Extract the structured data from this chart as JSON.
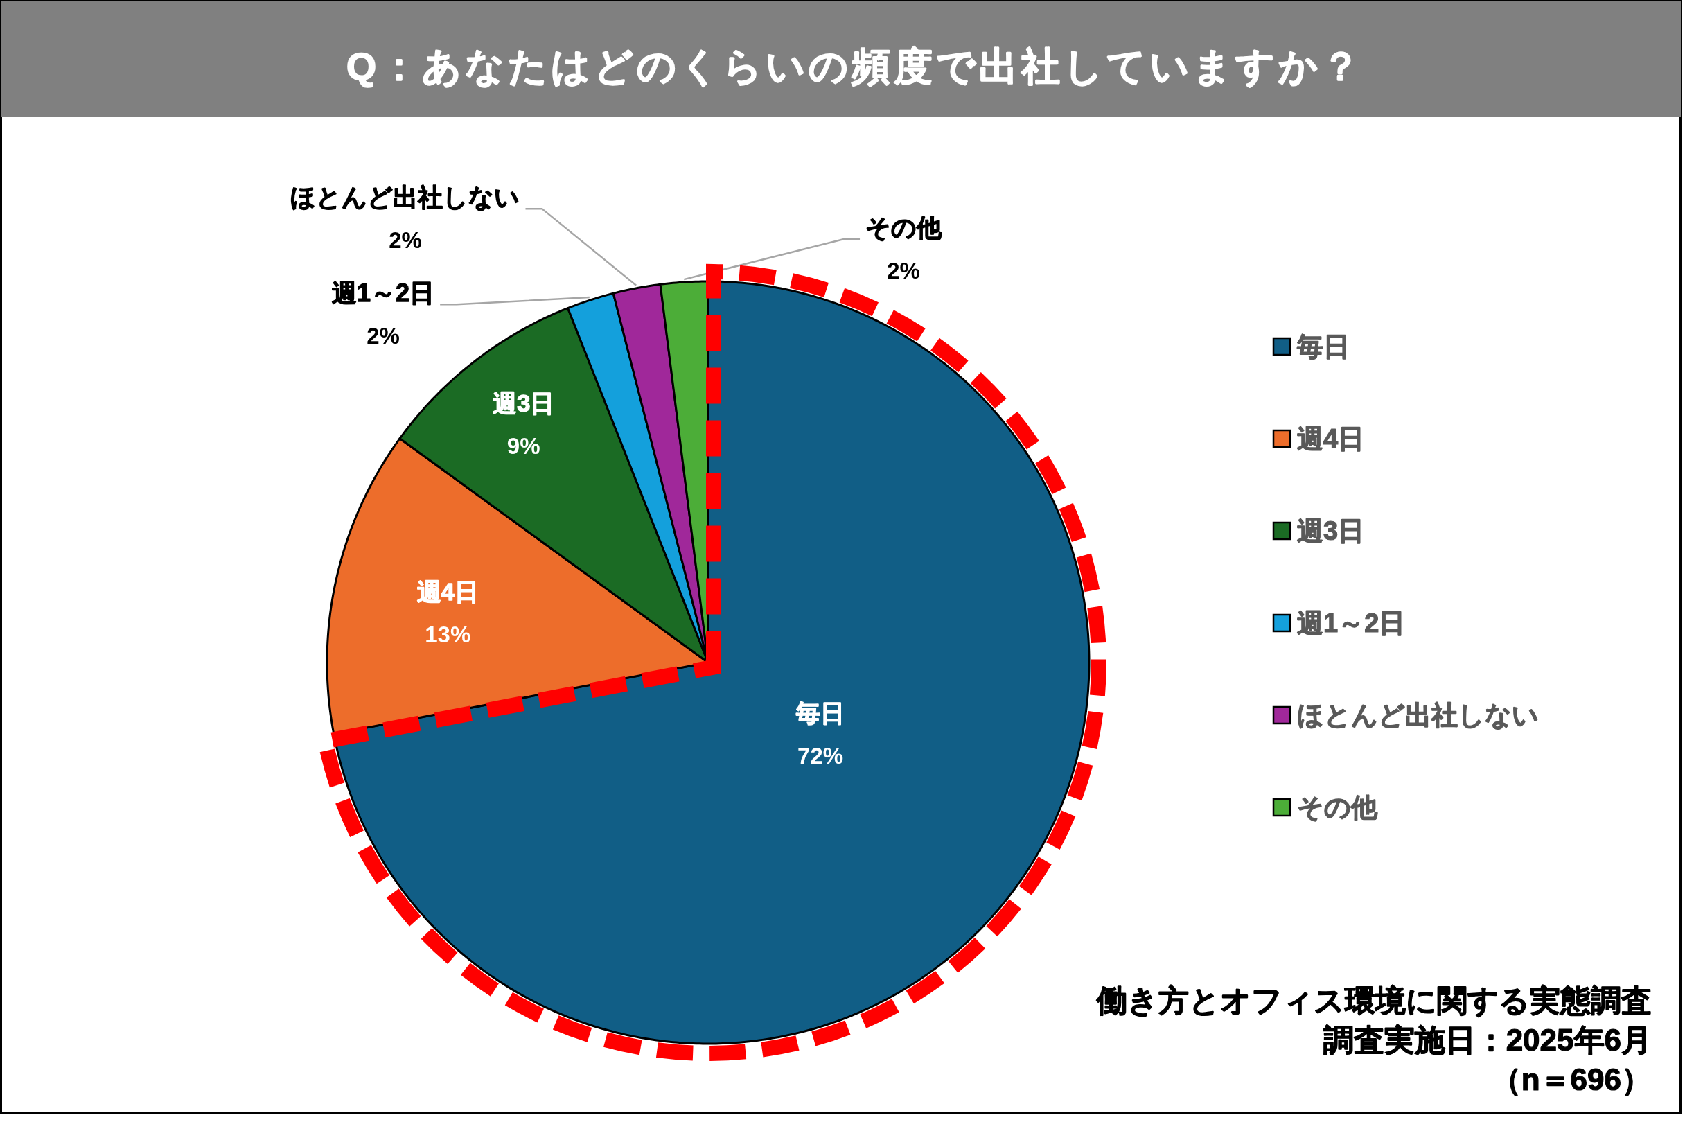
{
  "chart_data": {
    "type": "pie",
    "title": "Q：あなたはどのくらいの頻度で出社していますか？",
    "categories": [
      "毎日",
      "週4日",
      "週3日",
      "週1～2日",
      "ほとんど出社しない",
      "その他"
    ],
    "values": [
      72,
      13,
      9,
      2,
      2,
      2
    ],
    "colors": [
      "#115e86",
      "#ed6d2b",
      "#1b6b24",
      "#14a0dc",
      "#a0289a",
      "#4cad38"
    ],
    "value_labels": [
      "72%",
      "13%",
      "9%",
      "2%",
      "2%",
      "2%"
    ],
    "legend": "right",
    "annotations": [
      "働き方とオフィス環境に関する実態調査",
      "調査実施日：2025年6月",
      "（n＝696）"
    ]
  }
}
